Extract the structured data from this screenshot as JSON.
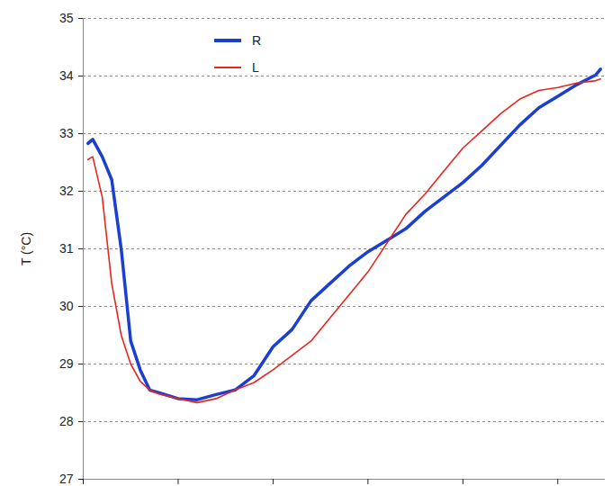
{
  "chart_data": {
    "type": "line",
    "y_label": "T (°C)",
    "x": [
      0.05,
      0.1,
      0.2,
      0.3,
      0.4,
      0.5,
      0.6,
      0.7,
      0.8,
      1.0,
      1.2,
      1.4,
      1.6,
      1.8,
      2.0,
      2.2,
      2.4,
      2.6,
      2.8,
      3.0,
      3.2,
      3.4,
      3.6,
      3.8,
      4.0,
      4.2,
      4.4,
      4.6,
      4.8,
      5.0,
      5.2,
      5.4,
      5.45
    ],
    "series": [
      {
        "name": "R",
        "color": "#1a3fd1",
        "values": [
          32.83,
          32.9,
          32.6,
          32.2,
          31.0,
          29.4,
          28.9,
          28.55,
          28.5,
          28.4,
          28.38,
          28.47,
          28.55,
          28.8,
          29.3,
          29.6,
          30.1,
          30.4,
          30.7,
          30.95,
          31.15,
          31.35,
          31.65,
          31.9,
          32.15,
          32.45,
          32.8,
          33.15,
          33.45,
          33.65,
          33.85,
          34.02,
          34.12
        ]
      },
      {
        "name": "L",
        "color": "#e8251f",
        "values": [
          32.55,
          32.6,
          31.9,
          30.4,
          29.5,
          29.0,
          28.7,
          28.55,
          28.48,
          28.4,
          28.33,
          28.4,
          28.55,
          28.68,
          28.9,
          29.15,
          29.4,
          29.8,
          30.2,
          30.6,
          31.1,
          31.6,
          31.95,
          32.35,
          32.75,
          33.05,
          33.35,
          33.6,
          33.75,
          33.8,
          33.88,
          33.92,
          33.95
        ]
      }
    ],
    "xlim": [
      0,
      5.5
    ],
    "xticks": [
      0,
      1,
      2,
      3,
      4,
      5
    ],
    "ylim": [
      27,
      35
    ],
    "yticks": [
      27,
      28,
      29,
      30,
      31,
      32,
      33,
      34,
      35
    ],
    "grid": true,
    "legend": "top",
    "tick_labels": "y"
  }
}
